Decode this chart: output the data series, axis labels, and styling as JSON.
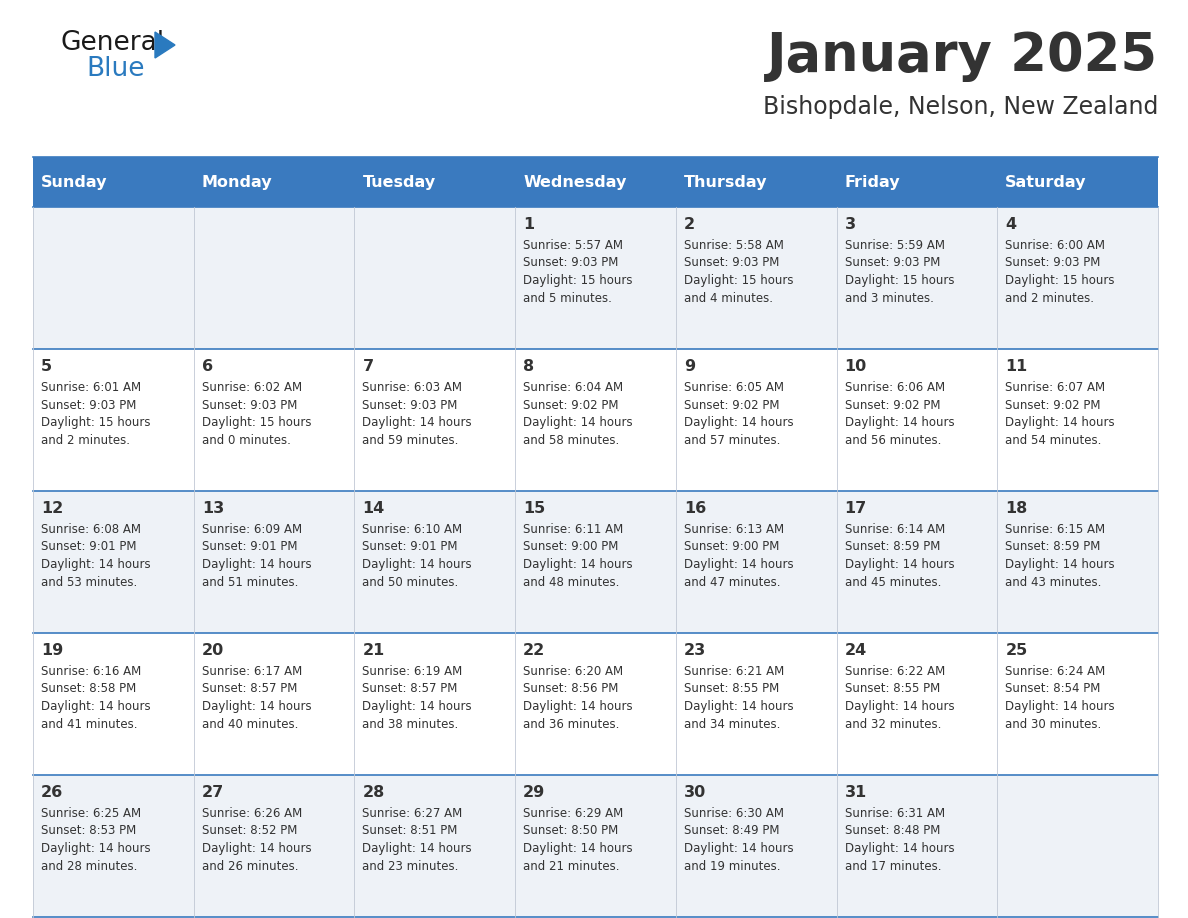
{
  "title": "January 2025",
  "subtitle": "Bishopdale, Nelson, New Zealand",
  "header_bg": "#3a7abf",
  "header_text_color": "#ffffff",
  "row_bg_odd": "#eef2f7",
  "row_bg_even": "#ffffff",
  "divider_color": "#3a7abf",
  "text_color": "#333333",
  "days_of_week": [
    "Sunday",
    "Monday",
    "Tuesday",
    "Wednesday",
    "Thursday",
    "Friday",
    "Saturday"
  ],
  "weeks": [
    [
      {
        "day": "",
        "info": ""
      },
      {
        "day": "",
        "info": ""
      },
      {
        "day": "",
        "info": ""
      },
      {
        "day": "1",
        "info": "Sunrise: 5:57 AM\nSunset: 9:03 PM\nDaylight: 15 hours\nand 5 minutes."
      },
      {
        "day": "2",
        "info": "Sunrise: 5:58 AM\nSunset: 9:03 PM\nDaylight: 15 hours\nand 4 minutes."
      },
      {
        "day": "3",
        "info": "Sunrise: 5:59 AM\nSunset: 9:03 PM\nDaylight: 15 hours\nand 3 minutes."
      },
      {
        "day": "4",
        "info": "Sunrise: 6:00 AM\nSunset: 9:03 PM\nDaylight: 15 hours\nand 2 minutes."
      }
    ],
    [
      {
        "day": "5",
        "info": "Sunrise: 6:01 AM\nSunset: 9:03 PM\nDaylight: 15 hours\nand 2 minutes."
      },
      {
        "day": "6",
        "info": "Sunrise: 6:02 AM\nSunset: 9:03 PM\nDaylight: 15 hours\nand 0 minutes."
      },
      {
        "day": "7",
        "info": "Sunrise: 6:03 AM\nSunset: 9:03 PM\nDaylight: 14 hours\nand 59 minutes."
      },
      {
        "day": "8",
        "info": "Sunrise: 6:04 AM\nSunset: 9:02 PM\nDaylight: 14 hours\nand 58 minutes."
      },
      {
        "day": "9",
        "info": "Sunrise: 6:05 AM\nSunset: 9:02 PM\nDaylight: 14 hours\nand 57 minutes."
      },
      {
        "day": "10",
        "info": "Sunrise: 6:06 AM\nSunset: 9:02 PM\nDaylight: 14 hours\nand 56 minutes."
      },
      {
        "day": "11",
        "info": "Sunrise: 6:07 AM\nSunset: 9:02 PM\nDaylight: 14 hours\nand 54 minutes."
      }
    ],
    [
      {
        "day": "12",
        "info": "Sunrise: 6:08 AM\nSunset: 9:01 PM\nDaylight: 14 hours\nand 53 minutes."
      },
      {
        "day": "13",
        "info": "Sunrise: 6:09 AM\nSunset: 9:01 PM\nDaylight: 14 hours\nand 51 minutes."
      },
      {
        "day": "14",
        "info": "Sunrise: 6:10 AM\nSunset: 9:01 PM\nDaylight: 14 hours\nand 50 minutes."
      },
      {
        "day": "15",
        "info": "Sunrise: 6:11 AM\nSunset: 9:00 PM\nDaylight: 14 hours\nand 48 minutes."
      },
      {
        "day": "16",
        "info": "Sunrise: 6:13 AM\nSunset: 9:00 PM\nDaylight: 14 hours\nand 47 minutes."
      },
      {
        "day": "17",
        "info": "Sunrise: 6:14 AM\nSunset: 8:59 PM\nDaylight: 14 hours\nand 45 minutes."
      },
      {
        "day": "18",
        "info": "Sunrise: 6:15 AM\nSunset: 8:59 PM\nDaylight: 14 hours\nand 43 minutes."
      }
    ],
    [
      {
        "day": "19",
        "info": "Sunrise: 6:16 AM\nSunset: 8:58 PM\nDaylight: 14 hours\nand 41 minutes."
      },
      {
        "day": "20",
        "info": "Sunrise: 6:17 AM\nSunset: 8:57 PM\nDaylight: 14 hours\nand 40 minutes."
      },
      {
        "day": "21",
        "info": "Sunrise: 6:19 AM\nSunset: 8:57 PM\nDaylight: 14 hours\nand 38 minutes."
      },
      {
        "day": "22",
        "info": "Sunrise: 6:20 AM\nSunset: 8:56 PM\nDaylight: 14 hours\nand 36 minutes."
      },
      {
        "day": "23",
        "info": "Sunrise: 6:21 AM\nSunset: 8:55 PM\nDaylight: 14 hours\nand 34 minutes."
      },
      {
        "day": "24",
        "info": "Sunrise: 6:22 AM\nSunset: 8:55 PM\nDaylight: 14 hours\nand 32 minutes."
      },
      {
        "day": "25",
        "info": "Sunrise: 6:24 AM\nSunset: 8:54 PM\nDaylight: 14 hours\nand 30 minutes."
      }
    ],
    [
      {
        "day": "26",
        "info": "Sunrise: 6:25 AM\nSunset: 8:53 PM\nDaylight: 14 hours\nand 28 minutes."
      },
      {
        "day": "27",
        "info": "Sunrise: 6:26 AM\nSunset: 8:52 PM\nDaylight: 14 hours\nand 26 minutes."
      },
      {
        "day": "28",
        "info": "Sunrise: 6:27 AM\nSunset: 8:51 PM\nDaylight: 14 hours\nand 23 minutes."
      },
      {
        "day": "29",
        "info": "Sunrise: 6:29 AM\nSunset: 8:50 PM\nDaylight: 14 hours\nand 21 minutes."
      },
      {
        "day": "30",
        "info": "Sunrise: 6:30 AM\nSunset: 8:49 PM\nDaylight: 14 hours\nand 19 minutes."
      },
      {
        "day": "31",
        "info": "Sunrise: 6:31 AM\nSunset: 8:48 PM\nDaylight: 14 hours\nand 17 minutes."
      },
      {
        "day": "",
        "info": ""
      }
    ]
  ],
  "logo_color_general": "#1a1a1a",
  "logo_color_blue": "#2a7abf",
  "logo_triangle_color": "#2a7abf",
  "fig_width": 11.88,
  "fig_height": 9.18,
  "dpi": 100
}
